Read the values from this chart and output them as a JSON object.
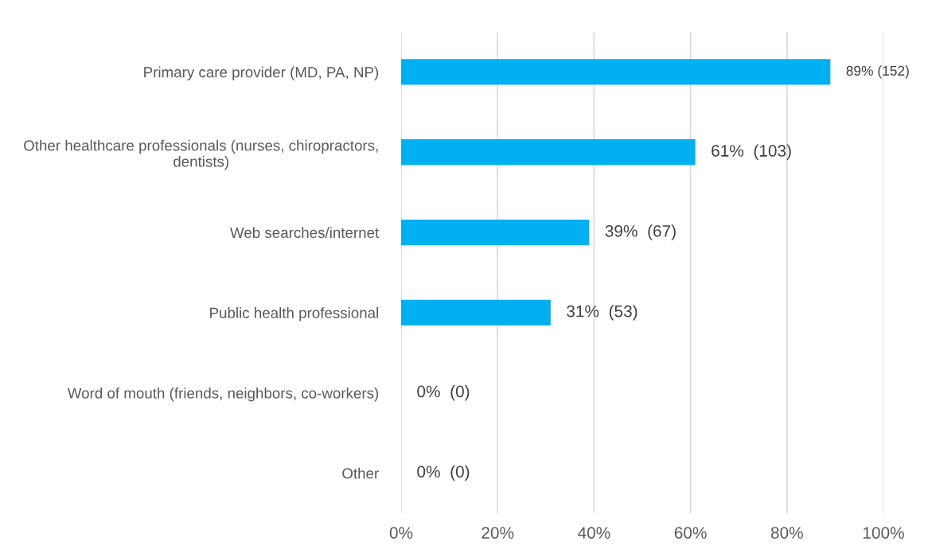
{
  "chart_data": {
    "type": "bar",
    "orientation": "horizontal",
    "categories": [
      "Primary care provider (MD, PA, NP)",
      "Other healthcare professionals (nurses, chiropractors,\ndentists)",
      "Web searches/internet",
      "Public health professional",
      "Word of mouth (friends, neighbors, co-workers)",
      "Other"
    ],
    "values": [
      89,
      61,
      39,
      31,
      0,
      0
    ],
    "value_labels": [
      "89% (152)",
      "61%  (103)",
      "39%  (67)",
      "31%  (53)",
      "0%  (0)",
      "0%  (0)"
    ],
    "color": "#00b0f0",
    "xlim": [
      0,
      100
    ],
    "xticks": [
      {
        "value": 0,
        "label": "0%"
      },
      {
        "value": 20,
        "label": "20%"
      },
      {
        "value": 40,
        "label": "40%"
      },
      {
        "value": 60,
        "label": "60%"
      },
      {
        "value": 80,
        "label": "80%"
      },
      {
        "value": 100,
        "label": "100%"
      }
    ],
    "grid": "x",
    "legend": false
  }
}
